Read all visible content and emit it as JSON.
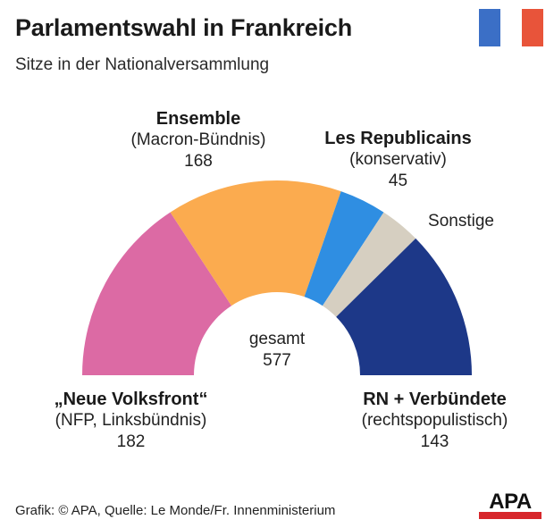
{
  "header": {
    "title": "Parlamentswahl in Frankreich",
    "subtitle": "Sitze in der Nationalversammlung"
  },
  "flag": {
    "colors": [
      "#3b6fc6",
      "#ffffff",
      "#e8543a"
    ]
  },
  "chart_data": {
    "type": "pie",
    "variant": "half-donut",
    "total_label": "gesamt",
    "total": 577,
    "series": [
      {
        "name": "„Neue Volksfront“",
        "subtitle": "(NFP, Linksbündnis)",
        "value": 182,
        "color": "#dc6aa4"
      },
      {
        "name": "Ensemble",
        "subtitle": "(Macron-Bündnis)",
        "value": 168,
        "color": "#fbab4f"
      },
      {
        "name": "Les Republicains",
        "subtitle": "(konservativ)",
        "value": 45,
        "color": "#2f8ee2"
      },
      {
        "name": "Sonstige",
        "subtitle": "",
        "value": 39,
        "color": "#d6cfc1"
      },
      {
        "name": "RN + Verbündete",
        "subtitle": "(rechtspopulistisch)",
        "value": 143,
        "color": "#1d3888"
      }
    ]
  },
  "labels": {
    "nfp": {
      "name": "„Neue Volksfront“",
      "sub": "(NFP, Linksbündnis)",
      "value": "182"
    },
    "ensemble": {
      "name": "Ensemble",
      "sub": "(Macron-Bündnis)",
      "value": "168"
    },
    "lr": {
      "name": "Les Republicains",
      "sub": "(konservativ)",
      "value": "45"
    },
    "sonstige": {
      "name": "Sonstige"
    },
    "rn": {
      "name": "RN + Verbündete",
      "sub": "(rechtspopulistisch)",
      "value": "143"
    },
    "total": {
      "label": "gesamt",
      "value": "577"
    }
  },
  "footer": {
    "credit": "Grafik: © APA, Quelle: Le Monde/Fr. Innenministerium"
  },
  "logo": {
    "text": "APA",
    "color": "#d7262b"
  }
}
